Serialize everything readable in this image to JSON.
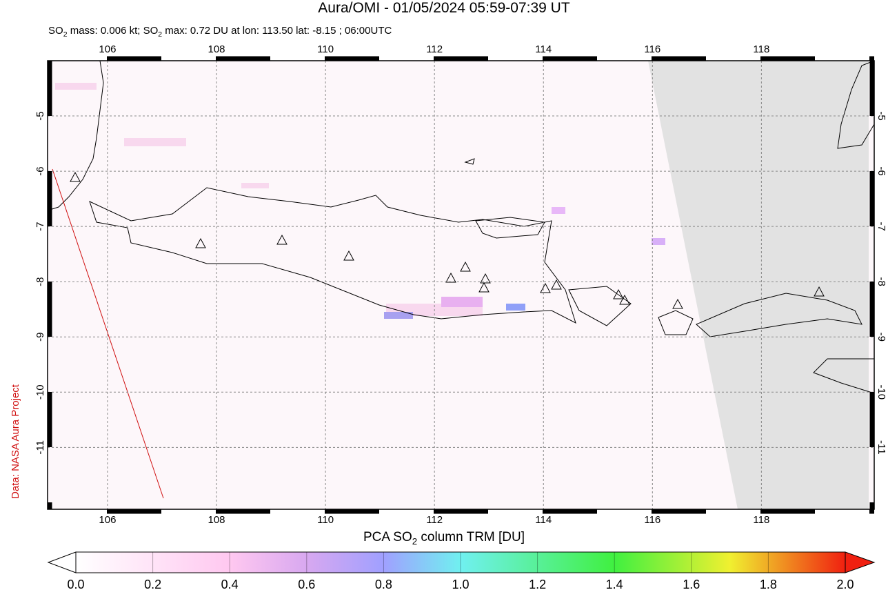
{
  "title": "Aura/OMI - 01/05/2024 05:59-07:39 UT",
  "subtitle": [
    "SO",
    "2",
    " mass: 0.006 kt; SO",
    "2",
    " max: 0.72 DU at lon: 113.50 lat: -8.15 ; 06:00UTC"
  ],
  "credit": "Data: NASA Aura Project",
  "map": {
    "xlim": [
      104.9,
      120.07
    ],
    "ylim": [
      -12.12,
      -4.0
    ],
    "xticks": [
      106,
      108,
      110,
      112,
      114,
      116,
      118
    ],
    "yticks": [
      -5,
      -6,
      -7,
      -8,
      -9,
      -10,
      -11
    ]
  },
  "colorbar": {
    "label": [
      "PCA SO",
      "2",
      " column TRM [DU]"
    ],
    "lim": [
      0,
      2
    ],
    "ticks": [
      {
        "value": 0,
        "label": "0.0"
      },
      {
        "value": 0.2,
        "label": "0.2"
      },
      {
        "value": 0.4,
        "label": "0.4"
      },
      {
        "value": 0.6,
        "label": "0.6"
      },
      {
        "value": 0.8,
        "label": "0.8"
      },
      {
        "value": 1.0,
        "label": "1.0"
      },
      {
        "value": 1.2,
        "label": "1.2"
      },
      {
        "value": 1.4,
        "label": "1.4"
      },
      {
        "value": 1.6,
        "label": "1.6"
      },
      {
        "value": 1.8,
        "label": "1.8"
      },
      {
        "value": 2.0,
        "label": "2.0"
      }
    ]
  }
}
